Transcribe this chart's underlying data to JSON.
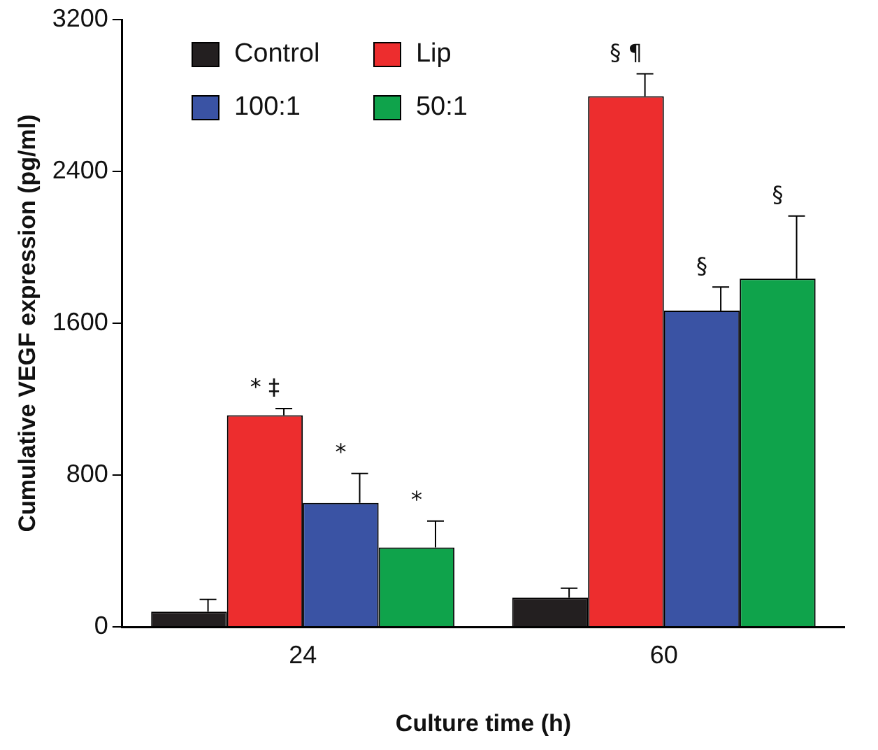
{
  "chart_data": {
    "type": "bar",
    "xlabel": "Culture time (h)",
    "ylabel": "Cumulative VEGF expression (pg/ml)",
    "categories": [
      "24",
      "60"
    ],
    "series": [
      {
        "name": "Control",
        "color": "#231f20",
        "values": [
          80,
          154
        ],
        "errors": [
          65,
          50
        ]
      },
      {
        "name": "Lip",
        "color": "#ed2d2e",
        "values": [
          1115,
          2796
        ],
        "errors": [
          35,
          118
        ]
      },
      {
        "name": "100:1",
        "color": "#3a53a4",
        "values": [
          653,
          1666
        ],
        "errors": [
          155,
          125
        ]
      },
      {
        "name": "50:1",
        "color": "#0fa34b",
        "values": [
          418,
          1835
        ],
        "errors": [
          140,
          330
        ]
      }
    ],
    "ylim": [
      0,
      3200
    ],
    "yticks": [
      0,
      800,
      1600,
      2400,
      3200
    ],
    "grid": false,
    "legend": "top left",
    "annotations": [
      {
        "text": "* ‡",
        "x": "24",
        "y": 1115
      },
      {
        "text": "*",
        "x": "24",
        "y": 653
      },
      "*",
      {
        "text": "§ ¶",
        "x": "60",
        "y": 2796
      },
      {
        "text": "§",
        "x": "60",
        "y": 1666
      },
      "§"
    ]
  }
}
